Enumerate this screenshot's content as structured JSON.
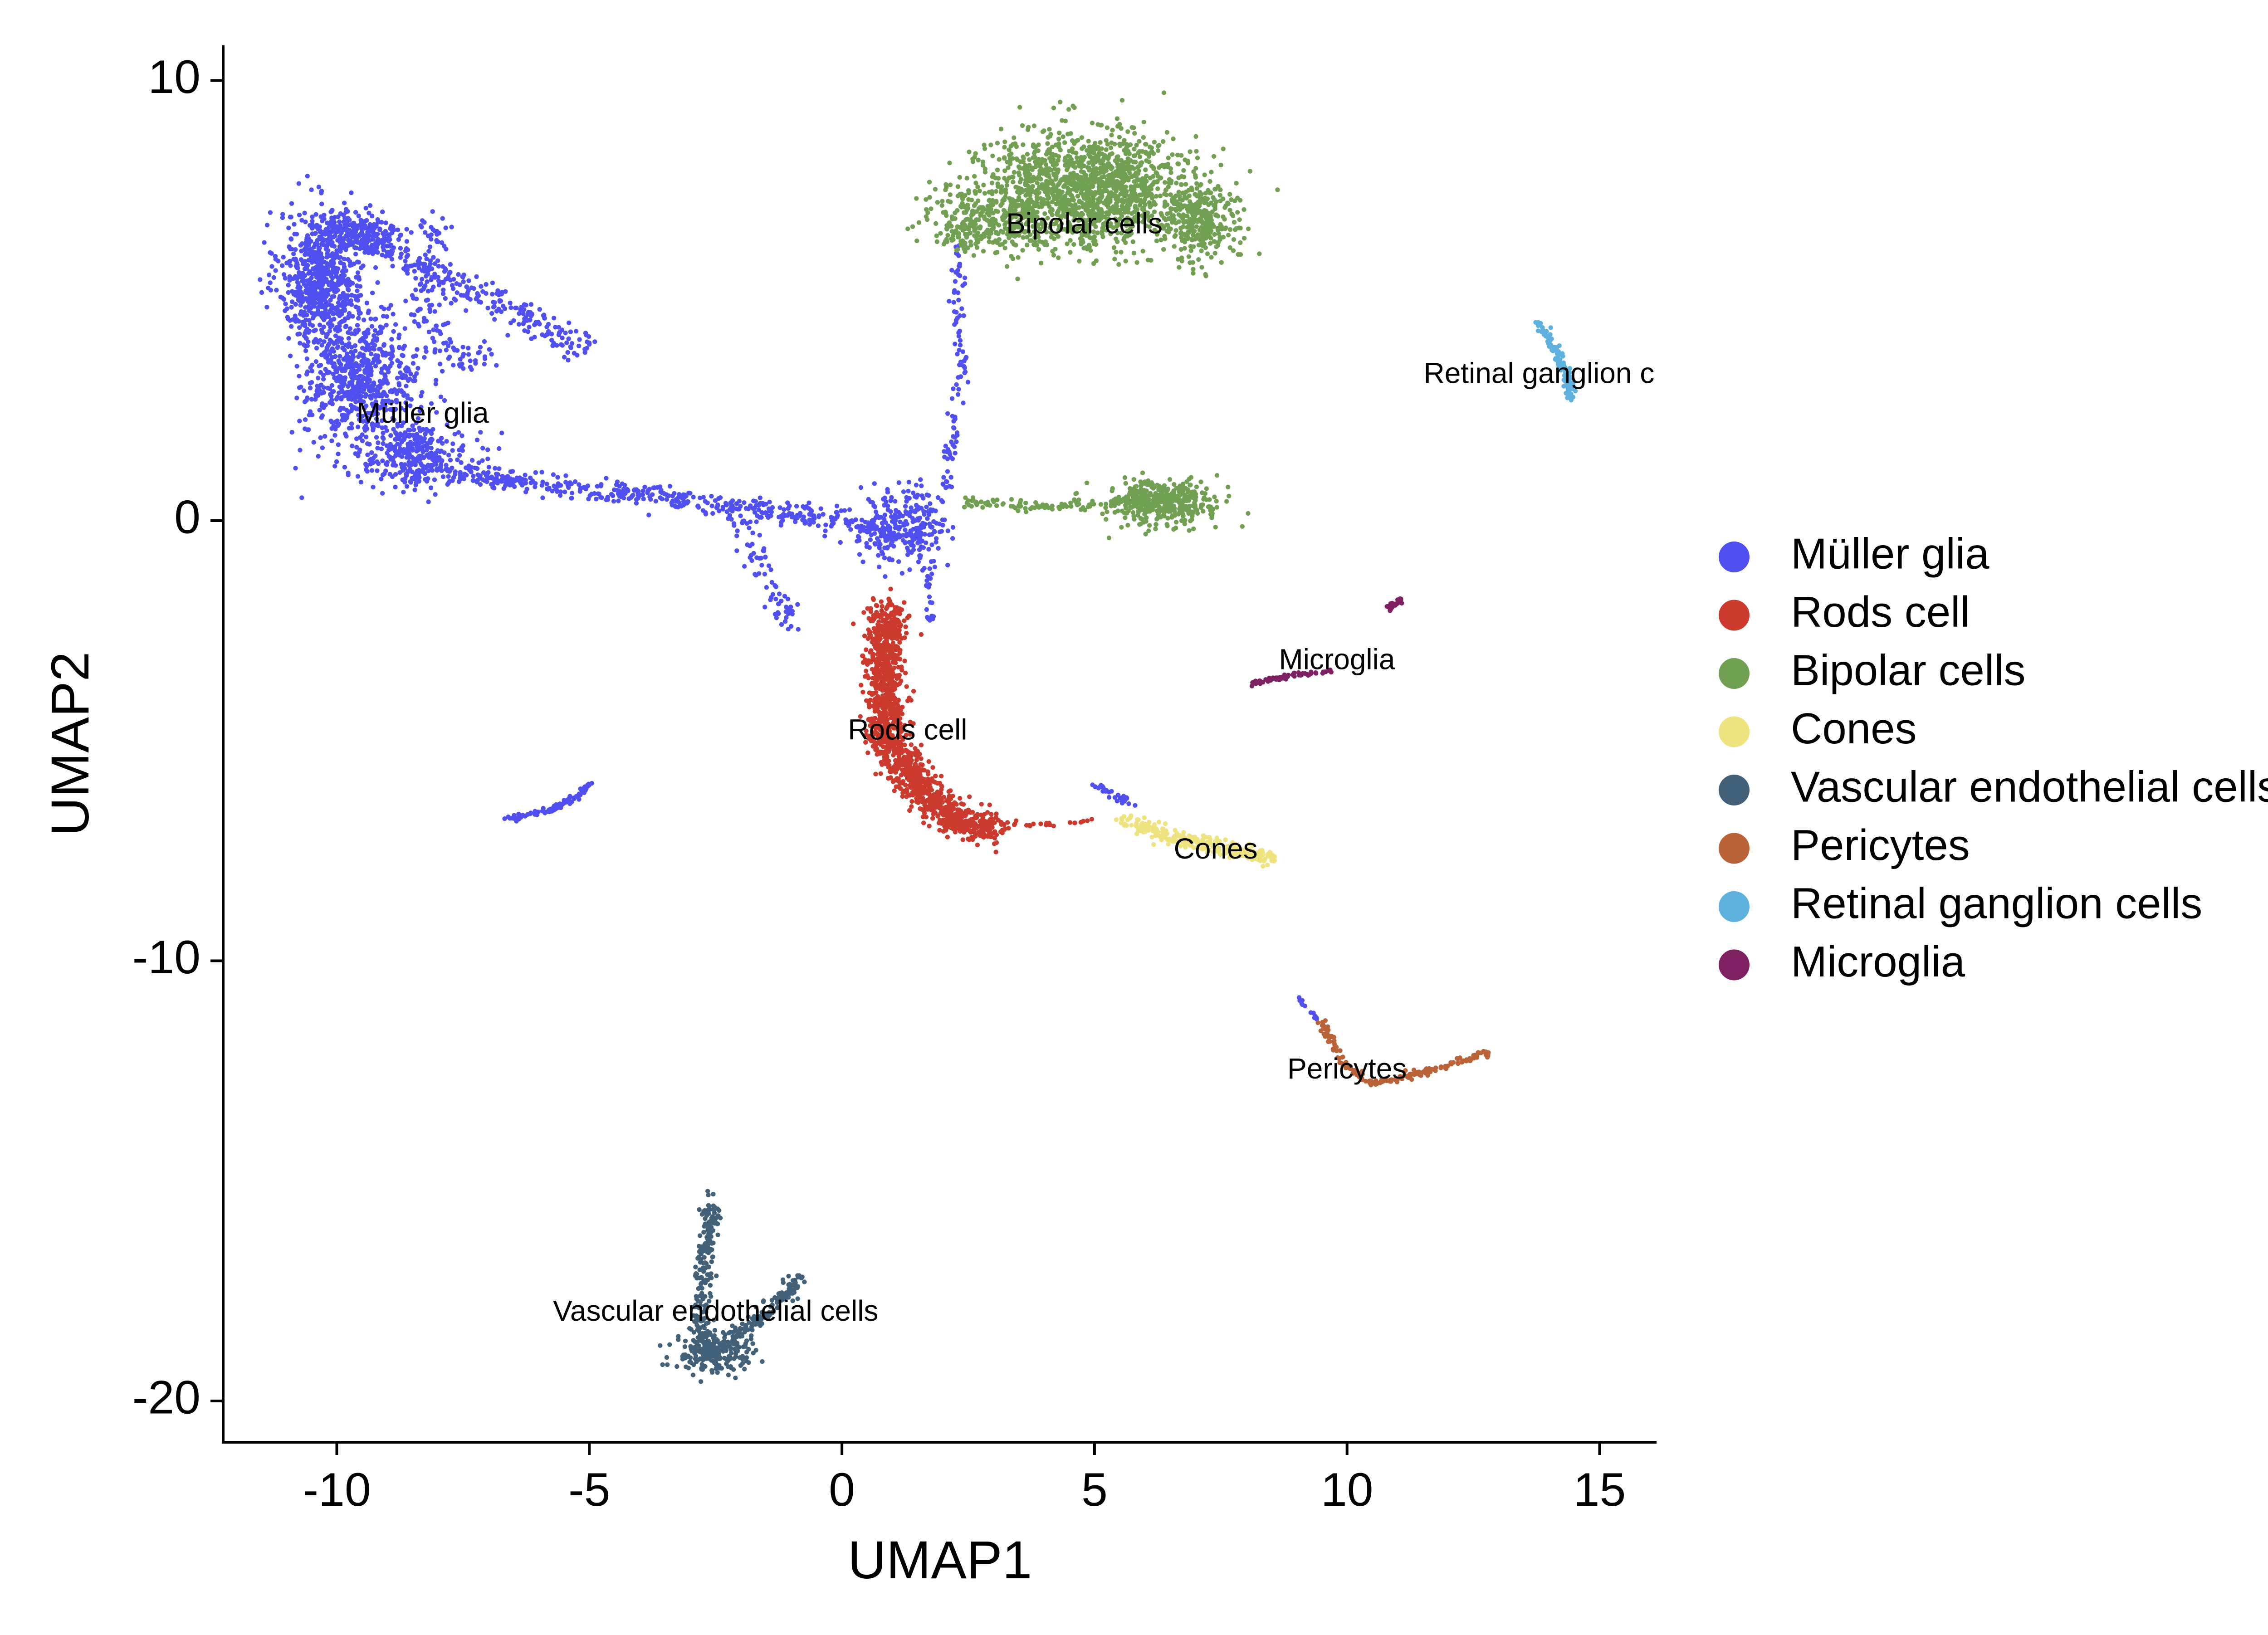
{
  "chart_data": {
    "type": "scatter",
    "title": "",
    "xlabel": "UMAP1",
    "ylabel": "UMAP2",
    "xlim": [
      -12.2,
      16.2
    ],
    "ylim": [
      -21,
      10.8
    ],
    "xticks": [
      -10,
      -5,
      0,
      5,
      10,
      15
    ],
    "yticks": [
      10,
      0,
      -10,
      -20
    ],
    "xtick_labels": [
      "-10",
      "-5",
      "0",
      "5",
      "10",
      "15"
    ],
    "ytick_labels": [
      "10",
      "0",
      "-10",
      "-20"
    ],
    "grid": false,
    "legend_position": "right",
    "series": [
      {
        "name": "Müller glia",
        "color": "#5050F0",
        "label": "Müller glia",
        "clusters": [
          {
            "type": "blob",
            "cx": -10.3,
            "cy": 5.5,
            "sx": 0.6,
            "sy": 1.1,
            "n": 700
          },
          {
            "type": "blob",
            "cx": -9.5,
            "cy": 3.2,
            "sx": 0.8,
            "sy": 1.0,
            "n": 650
          },
          {
            "type": "blob",
            "cx": -8.5,
            "cy": 1.5,
            "sx": 0.8,
            "sy": 0.5,
            "n": 300
          },
          {
            "type": "blob",
            "cx": -9.6,
            "cy": 6.5,
            "sx": 0.6,
            "sy": 0.4,
            "n": 220
          },
          {
            "type": "path",
            "pts": [
              [
                -9.5,
                6.5
              ],
              [
                -8.8,
                6.0
              ],
              [
                -7.5,
                5.3
              ],
              [
                -6.2,
                4.6
              ],
              [
                -5.0,
                3.9
              ]
            ],
            "spread": 0.35,
            "n": 260
          },
          {
            "type": "path",
            "pts": [
              [
                -8.0,
                6.9
              ],
              [
                -8.3,
                5.5
              ],
              [
                -8.0,
                4.0
              ],
              [
                -7.0,
                3.5
              ]
            ],
            "spread": 0.4,
            "n": 130
          },
          {
            "type": "path",
            "pts": [
              [
                -8.5,
                1.2
              ],
              [
                -6.0,
                0.8
              ],
              [
                -4.0,
                0.6
              ],
              [
                -2.0,
                0.3
              ],
              [
                0.0,
                0.0
              ],
              [
                1.5,
                -0.4
              ]
            ],
            "spread": 0.25,
            "n": 520
          },
          {
            "type": "path",
            "pts": [
              [
                -2.0,
                0.0
              ],
              [
                -1.5,
                -1.3
              ],
              [
                -1.0,
                -2.5
              ]
            ],
            "spread": 0.25,
            "n": 70
          },
          {
            "type": "blob",
            "cx": 1.2,
            "cy": -0.1,
            "sx": 0.6,
            "sy": 0.6,
            "n": 230
          },
          {
            "type": "path",
            "pts": [
              [
                1.9,
                -0.5
              ],
              [
                2.2,
                2.0
              ],
              [
                2.4,
                3.5
              ],
              [
                2.3,
                5.0
              ],
              [
                2.3,
                6.2
              ]
            ],
            "spread": 0.15,
            "n": 110
          },
          {
            "type": "path",
            "pts": [
              [
                1.7,
                -0.9
              ],
              [
                1.8,
                -2.3
              ]
            ],
            "spread": 0.1,
            "n": 25
          },
          {
            "type": "path",
            "pts": [
              [
                -6.7,
                -6.8
              ],
              [
                -5.8,
                -6.6
              ],
              [
                -5.3,
                -6.3
              ],
              [
                -4.9,
                -5.9
              ]
            ],
            "spread": 0.07,
            "n": 90
          },
          {
            "type": "path",
            "pts": [
              [
                5.0,
                -6.0
              ],
              [
                5.8,
                -6.5
              ]
            ],
            "spread": 0.1,
            "n": 30
          },
          {
            "type": "path",
            "pts": [
              [
                9.0,
                -10.8
              ],
              [
                9.5,
                -11.4
              ]
            ],
            "spread": 0.06,
            "n": 12
          }
        ]
      },
      {
        "name": "Rods cell",
        "color": "#CC3A2E",
        "label": "Rods cell",
        "clusters": [
          {
            "type": "path",
            "pts": [
              [
                0.9,
                -2.0
              ],
              [
                0.8,
                -3.5
              ],
              [
                0.9,
                -5.0
              ],
              [
                1.6,
                -6.2
              ],
              [
                2.4,
                -6.9
              ],
              [
                3.0,
                -7.0
              ]
            ],
            "spread": 0.38,
            "n": 1400
          },
          {
            "type": "path",
            "pts": [
              [
                3.0,
                -6.9
              ],
              [
                4.4,
                -6.9
              ],
              [
                5.0,
                -6.8
              ]
            ],
            "spread": 0.05,
            "n": 25
          }
        ]
      },
      {
        "name": "Bipolar cells",
        "color": "#72A052",
        "label": "Bipolar cells",
        "clusters": [
          {
            "type": "blob",
            "cx": 4.8,
            "cy": 7.5,
            "sx": 1.5,
            "sy": 0.9,
            "n": 1500
          },
          {
            "type": "blob",
            "cx": 2.8,
            "cy": 6.8,
            "sx": 0.8,
            "sy": 0.5,
            "n": 300
          },
          {
            "type": "blob",
            "cx": 7.1,
            "cy": 6.8,
            "sx": 0.5,
            "sy": 0.6,
            "n": 300
          },
          {
            "type": "blob",
            "cx": 6.3,
            "cy": 0.4,
            "sx": 0.8,
            "sy": 0.35,
            "n": 450
          },
          {
            "type": "path",
            "pts": [
              [
                2.4,
                0.4
              ],
              [
                3.8,
                0.3
              ],
              [
                5.0,
                0.4
              ]
            ],
            "spread": 0.12,
            "n": 80
          }
        ]
      },
      {
        "name": "Cones",
        "color": "#EEE37E",
        "label": "Cones",
        "clusters": [
          {
            "type": "path",
            "pts": [
              [
                5.6,
                -6.8
              ],
              [
                6.5,
                -7.2
              ],
              [
                7.5,
                -7.4
              ],
              [
                8.6,
                -7.7
              ]
            ],
            "spread": 0.17,
            "n": 260
          }
        ]
      },
      {
        "name": "Vascular endothelial cells",
        "color": "#426179",
        "label": "Vascular endothelial cells",
        "clusters": [
          {
            "type": "path",
            "pts": [
              [
                -2.6,
                -15.5
              ],
              [
                -2.7,
                -16.6
              ],
              [
                -2.8,
                -17.7
              ],
              [
                -2.8,
                -18.7
              ]
            ],
            "spread": 0.2,
            "n": 200
          },
          {
            "type": "blob",
            "cx": -2.6,
            "cy": -18.9,
            "sx": 0.5,
            "sy": 0.35,
            "n": 220
          },
          {
            "type": "path",
            "pts": [
              [
                -2.2,
                -18.6
              ],
              [
                -1.5,
                -18.0
              ],
              [
                -0.8,
                -17.2
              ]
            ],
            "spread": 0.2,
            "n": 130
          }
        ]
      },
      {
        "name": "Pericytes",
        "color": "#BA6238",
        "label": "Pericytes",
        "clusters": [
          {
            "type": "path",
            "pts": [
              [
                9.5,
                -11.4
              ],
              [
                9.9,
                -12.3
              ],
              [
                10.5,
                -12.8
              ],
              [
                11.3,
                -12.6
              ],
              [
                12.2,
                -12.3
              ],
              [
                12.8,
                -12.1
              ]
            ],
            "spread": 0.08,
            "n": 180
          }
        ]
      },
      {
        "name": "Retinal ganglion cells",
        "color": "#5EB1DF",
        "label": "Retinal ganglion c",
        "clusters": [
          {
            "type": "path",
            "pts": [
              [
                13.8,
                4.5
              ],
              [
                14.1,
                3.9
              ],
              [
                14.4,
                3.2
              ],
              [
                14.4,
                2.8
              ]
            ],
            "spread": 0.1,
            "n": 110
          }
        ]
      },
      {
        "name": "Microglia",
        "color": "#7E2061",
        "label": "Microglia",
        "clusters": [
          {
            "type": "path",
            "pts": [
              [
                8.1,
                -3.7
              ],
              [
                9.0,
                -3.5
              ],
              [
                9.7,
                -3.4
              ]
            ],
            "spread": 0.05,
            "n": 70
          },
          {
            "type": "path",
            "pts": [
              [
                10.8,
                -2.0
              ],
              [
                11.1,
                -1.8
              ]
            ],
            "spread": 0.08,
            "n": 25
          }
        ]
      }
    ],
    "cluster_labels": [
      {
        "text": "Müller glia",
        "x": -8.3,
        "y": 2.4
      },
      {
        "text": "Bipolar cells",
        "x": 4.8,
        "y": 6.7
      },
      {
        "text": "Retinal ganglion c",
        "x": 13.8,
        "y": 3.3
      },
      {
        "text": "Microglia",
        "x": 9.8,
        "y": -3.2
      },
      {
        "text": "Rods cell",
        "x": 1.3,
        "y": -4.8
      },
      {
        "text": "Cones",
        "x": 7.4,
        "y": -7.5
      },
      {
        "text": "Pericytes",
        "x": 10.0,
        "y": -12.5
      },
      {
        "text": "Vascular endothelial cells",
        "x": -2.5,
        "y": -18.0
      }
    ]
  }
}
